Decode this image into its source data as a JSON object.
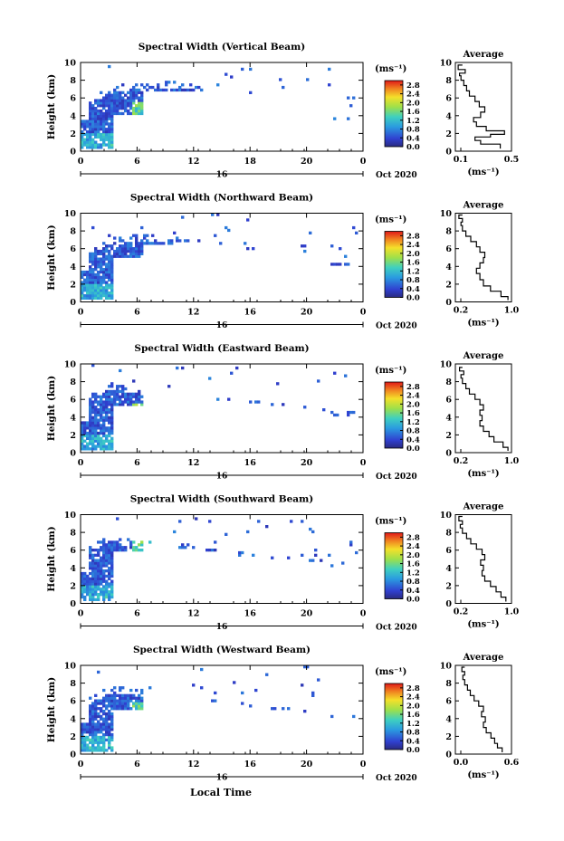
{
  "figure": {
    "xlabel_bottom": "Local Time",
    "date_label": "Oct 2020",
    "day_label": "16",
    "ylabel": "Height (km)",
    "colorbar_unit": "(ms⁻¹)",
    "avg_title": "Average",
    "avg_xlabel": "(ms⁻¹)"
  },
  "chart_data": [
    {
      "type": "heatmap",
      "title": "Spectral Width (Vertical Beam)",
      "x_ticks": [
        "0",
        "6",
        "12",
        "18",
        "20",
        "0"
      ],
      "x_range": [
        0,
        24
      ],
      "y_ticks": [
        "0",
        "2",
        "4",
        "6",
        "8",
        "10"
      ],
      "y_range": [
        0,
        10
      ],
      "colorbar_ticks": [
        "0.0",
        "0.4",
        "0.8",
        "1.2",
        "1.6",
        "2.0",
        "2.4",
        "2.8"
      ],
      "colorbar_range": [
        0,
        3
      ],
      "coverage": [
        [
          0.3,
          4.2
        ],
        [
          4.2,
          6.8
        ],
        [
          6.8,
          6.8
        ],
        [
          6.8,
          7.2
        ],
        [
          7.2,
          6.6
        ],
        [
          6.6,
          5.8
        ],
        [
          5.8,
          4.2
        ],
        [
          4.2,
          3.5
        ],
        [
          3.5,
          3.0
        ]
      ],
      "gap": [
        19.5,
        22.0,
        0.6,
        2.0
      ],
      "burst": [
        4.9,
        5.9,
        0.4,
        4.0
      ],
      "burst_right": [
        22.6,
        23.6,
        1.0,
        3.0
      ],
      "avg_x_range": [
        0.1,
        0.5
      ],
      "avg_x_ticks": [
        "0.1",
        "0.5"
      ],
      "avg_profile": [
        [
          0.42,
          0.3
        ],
        [
          0.28,
          0.8
        ],
        [
          0.24,
          1.2
        ],
        [
          0.35,
          1.6
        ],
        [
          0.45,
          1.9
        ],
        [
          0.32,
          2.3
        ],
        [
          0.25,
          2.8
        ],
        [
          0.23,
          3.3
        ],
        [
          0.28,
          3.8
        ],
        [
          0.31,
          4.4
        ],
        [
          0.27,
          5.0
        ],
        [
          0.24,
          5.6
        ],
        [
          0.2,
          6.2
        ],
        [
          0.18,
          6.8
        ],
        [
          0.16,
          7.4
        ],
        [
          0.14,
          8.0
        ],
        [
          0.13,
          8.5
        ],
        [
          0.17,
          8.8
        ],
        [
          0.12,
          9.2
        ],
        [
          0.15,
          9.7
        ]
      ]
    },
    {
      "type": "heatmap",
      "title": "Spectral Width (Northward Beam)",
      "x_ticks": [
        "0",
        "6",
        "12",
        "16",
        "20",
        "0"
      ],
      "x_range": [
        0,
        24
      ],
      "y_ticks": [
        "0",
        "2",
        "4",
        "6",
        "8",
        "10"
      ],
      "y_range": [
        0,
        10
      ],
      "colorbar_ticks": [
        "0.0",
        "0.4",
        "0.8",
        "1.2",
        "1.6",
        "2.0",
        "2.4",
        "2.8"
      ],
      "colorbar_range": [
        0,
        3
      ],
      "coverage": [
        [
          0.2,
          5.0
        ],
        [
          5.0,
          6.5
        ],
        [
          6.5,
          6.8
        ],
        [
          6.8,
          6.5
        ],
        [
          6.5,
          6.0
        ],
        [
          6.0,
          5.5
        ],
        [
          5.5,
          5.0
        ],
        [
          5.0,
          4.2
        ],
        [
          4.2,
          3.6
        ]
      ],
      "gap": [
        17.0,
        19.0,
        0.3,
        1.2
      ],
      "burst": [
        4.9,
        5.9,
        0.5,
        3.5
      ],
      "burst_right": [
        22.4,
        23.4,
        0.8,
        2.2
      ],
      "avg_x_range": [
        0.2,
        1.0
      ],
      "avg_x_ticks": [
        "0.2",
        "1.0"
      ],
      "avg_profile": [
        [
          0.95,
          0.2
        ],
        [
          0.85,
          0.6
        ],
        [
          0.7,
          1.2
        ],
        [
          0.6,
          1.8
        ],
        [
          0.55,
          2.5
        ],
        [
          0.5,
          3.2
        ],
        [
          0.55,
          3.8
        ],
        [
          0.6,
          4.4
        ],
        [
          0.62,
          5.0
        ],
        [
          0.55,
          5.6
        ],
        [
          0.5,
          6.2
        ],
        [
          0.42,
          6.8
        ],
        [
          0.35,
          7.4
        ],
        [
          0.3,
          8.0
        ],
        [
          0.28,
          8.6
        ],
        [
          0.3,
          9.0
        ],
        [
          0.25,
          9.4
        ],
        [
          0.3,
          9.8
        ]
      ]
    },
    {
      "type": "heatmap",
      "title": "Spectral Width (Eastward Beam)",
      "x_ticks": [
        "0",
        "6",
        "12",
        "16",
        "20",
        "0"
      ],
      "x_range": [
        0,
        24
      ],
      "y_ticks": [
        "0",
        "2",
        "4",
        "6",
        "8",
        "10"
      ],
      "y_range": [
        0,
        10
      ],
      "colorbar_ticks": [
        "0.0",
        "0.4",
        "0.8",
        "1.2",
        "1.6",
        "2.0",
        "2.4",
        "2.8"
      ],
      "colorbar_range": [
        0,
        3
      ],
      "coverage": [
        [
          0.2,
          5.2
        ],
        [
          5.2,
          7.2
        ],
        [
          7.2,
          6.5
        ],
        [
          6.5,
          6.0
        ],
        [
          6.0,
          5.6
        ],
        [
          5.6,
          5.2
        ],
        [
          5.2,
          4.8
        ],
        [
          4.8,
          4.2
        ],
        [
          4.2,
          3.8
        ]
      ],
      "gap": [
        20.5,
        21.5,
        2.0,
        3.0
      ],
      "burst": [
        4.9,
        5.9,
        0.3,
        4.2
      ],
      "burst_right": [
        22.5,
        23.5,
        1.0,
        2.4
      ],
      "avg_x_range": [
        0.2,
        1.0
      ],
      "avg_x_ticks": [
        "0.2",
        "1.0"
      ],
      "avg_profile": [
        [
          0.95,
          0.2
        ],
        [
          0.88,
          0.6
        ],
        [
          0.75,
          1.2
        ],
        [
          0.68,
          1.8
        ],
        [
          0.6,
          2.4
        ],
        [
          0.55,
          3.0
        ],
        [
          0.58,
          3.6
        ],
        [
          0.55,
          4.2
        ],
        [
          0.6,
          4.8
        ],
        [
          0.55,
          5.4
        ],
        [
          0.48,
          6.0
        ],
        [
          0.4,
          6.6
        ],
        [
          0.35,
          7.2
        ],
        [
          0.3,
          7.8
        ],
        [
          0.28,
          8.4
        ],
        [
          0.32,
          8.8
        ],
        [
          0.26,
          9.2
        ],
        [
          0.3,
          9.6
        ]
      ]
    },
    {
      "type": "heatmap",
      "title": "Spectral Width (Southward Beam)",
      "x_ticks": [
        "0",
        "6",
        "12",
        "16",
        "20",
        "0"
      ],
      "x_range": [
        0,
        24
      ],
      "y_ticks": [
        "0",
        "2",
        "4",
        "6",
        "8",
        "10"
      ],
      "y_range": [
        0,
        10
      ],
      "colorbar_ticks": [
        "0.0",
        "0.4",
        "0.8",
        "1.2",
        "1.6",
        "2.0",
        "2.4",
        "2.8"
      ],
      "colorbar_range": [
        0,
        3
      ],
      "coverage": [
        [
          0.2,
          5.8
        ],
        [
          5.8,
          6.8
        ],
        [
          6.8,
          6.2
        ],
        [
          6.2,
          5.8
        ],
        [
          5.8,
          5.4
        ],
        [
          5.4,
          5.0
        ],
        [
          5.0,
          4.6
        ],
        [
          4.6,
          4.2
        ],
        [
          4.2,
          4.0
        ]
      ],
      "gap": [
        17.5,
        19.5,
        0.4,
        1.2
      ],
      "burst": [
        4.9,
        5.9,
        0.3,
        5.5
      ],
      "burst_right": [
        22.3,
        23.3,
        0.8,
        2.4
      ],
      "avg_x_range": [
        0.2,
        1.0
      ],
      "avg_x_ticks": [
        "0.2",
        "1.0"
      ],
      "avg_profile": [
        [
          0.92,
          0.2
        ],
        [
          0.85,
          0.7
        ],
        [
          0.78,
          1.3
        ],
        [
          0.7,
          1.9
        ],
        [
          0.62,
          2.5
        ],
        [
          0.58,
          3.1
        ],
        [
          0.6,
          3.7
        ],
        [
          0.56,
          4.3
        ],
        [
          0.62,
          4.9
        ],
        [
          0.58,
          5.5
        ],
        [
          0.5,
          6.1
        ],
        [
          0.42,
          6.7
        ],
        [
          0.36,
          7.3
        ],
        [
          0.3,
          7.9
        ],
        [
          0.27,
          8.5
        ],
        [
          0.3,
          8.9
        ],
        [
          0.25,
          9.3
        ],
        [
          0.3,
          9.8
        ]
      ]
    },
    {
      "type": "heatmap",
      "title": "Spectral Width (Westward Beam)",
      "x_ticks": [
        "0",
        "6",
        "12",
        "16",
        "20",
        "0"
      ],
      "x_range": [
        0,
        24
      ],
      "y_ticks": [
        "0",
        "2",
        "4",
        "6",
        "8",
        "10"
      ],
      "y_range": [
        0,
        10
      ],
      "colorbar_ticks": [
        "0.0",
        "0.4",
        "0.8",
        "1.2",
        "1.6",
        "2.0",
        "2.4",
        "2.8"
      ],
      "colorbar_range": [
        0,
        3
      ],
      "coverage": [
        [
          0.3,
          5.0
        ],
        [
          5.0,
          7.0
        ],
        [
          7.0,
          6.4
        ],
        [
          6.4,
          5.8
        ],
        [
          5.8,
          5.4
        ],
        [
          5.4,
          5.0
        ],
        [
          5.0,
          4.6
        ],
        [
          4.6,
          4.2
        ],
        [
          4.2,
          3.6
        ]
      ],
      "gap": [
        18.5,
        20.0,
        0.3,
        1.0
      ],
      "burst": [
        4.9,
        5.9,
        0.3,
        4.4
      ],
      "burst_right": [
        22.5,
        23.5,
        0.8,
        2.2
      ],
      "avg_x_range": [
        0.0,
        0.6
      ],
      "avg_x_ticks": [
        "0.0",
        "0.6"
      ],
      "avg_profile": [
        [
          0.5,
          0.2
        ],
        [
          0.45,
          0.7
        ],
        [
          0.42,
          1.2
        ],
        [
          0.38,
          1.8
        ],
        [
          0.33,
          2.4
        ],
        [
          0.3,
          3.0
        ],
        [
          0.32,
          3.6
        ],
        [
          0.28,
          4.2
        ],
        [
          0.3,
          4.8
        ],
        [
          0.25,
          5.4
        ],
        [
          0.2,
          6.0
        ],
        [
          0.16,
          6.6
        ],
        [
          0.13,
          7.2
        ],
        [
          0.1,
          7.8
        ],
        [
          0.08,
          8.4
        ],
        [
          0.1,
          8.9
        ],
        [
          0.07,
          9.3
        ],
        [
          0.1,
          9.8
        ]
      ]
    }
  ]
}
